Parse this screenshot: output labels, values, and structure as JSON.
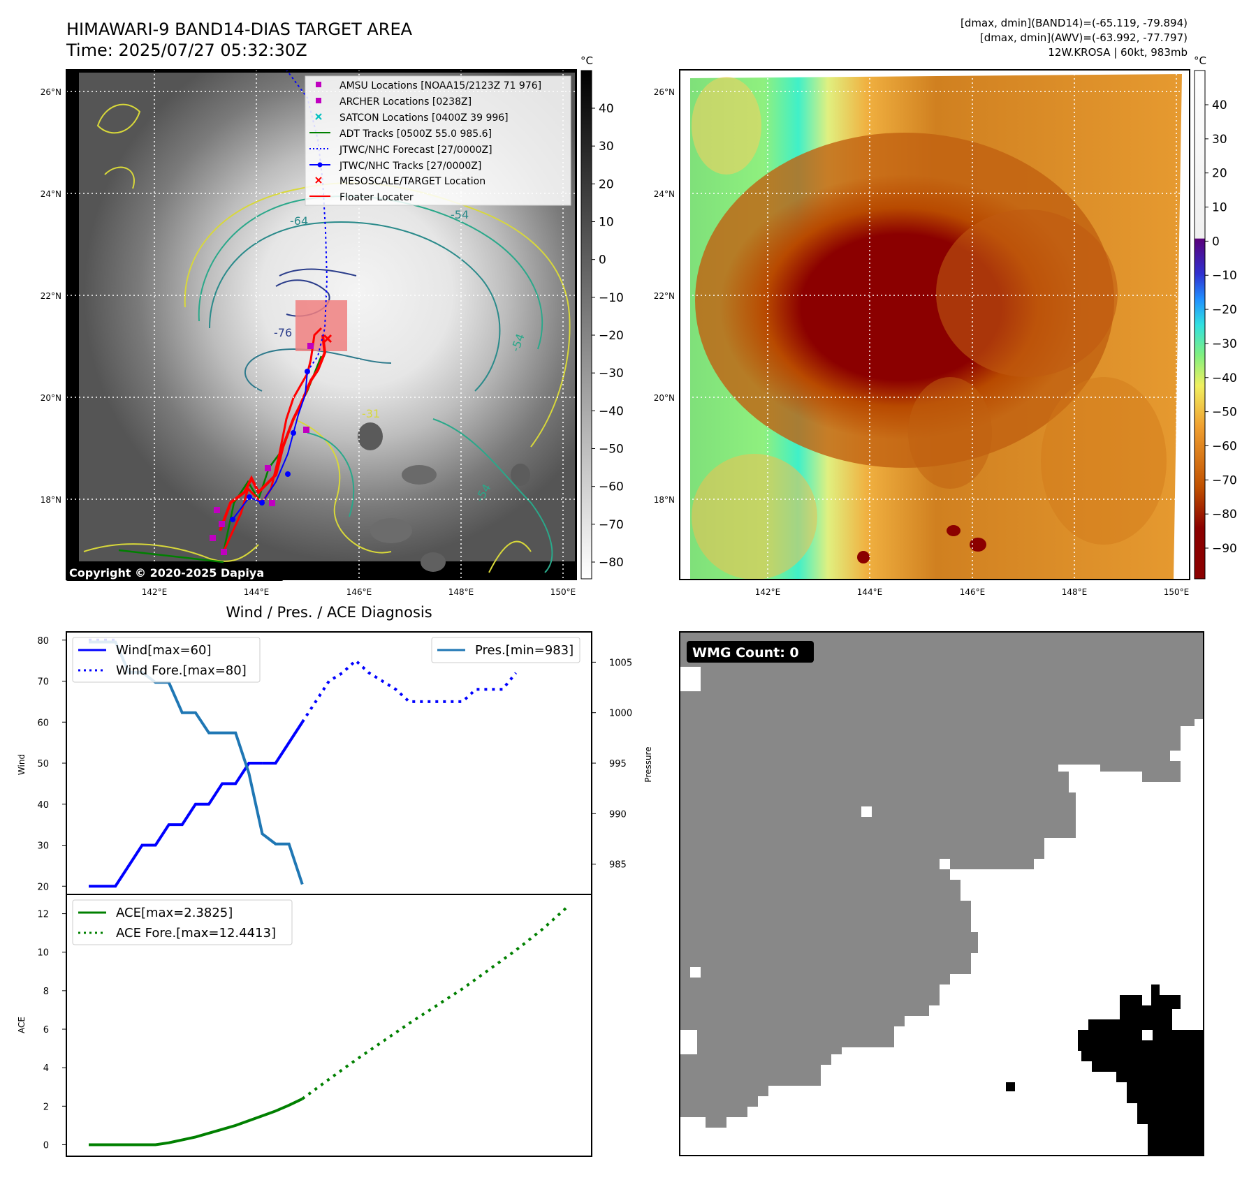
{
  "header": {
    "title_line1": "HIMAWARI-9 BAND14-DIAS TARGET AREA",
    "title_line2": "Time: 2025/07/27 05:32:30Z",
    "info_line1": "[dmax, dmin](BAND14)=(-65.119, -79.894)",
    "info_line2": "[dmax, dmin](AWV)=(-63.992, -77.797)",
    "info_line3": "12W.KROSA | 60kt, 983mb"
  },
  "map_left": {
    "lat_labels": [
      "26°N",
      "24°N",
      "22°N",
      "20°N",
      "18°N"
    ],
    "lon_labels": [
      "142°E",
      "144°E",
      "146°E",
      "148°E",
      "150°E"
    ],
    "colorbar_unit": "°C",
    "colorbar_ticks": [
      "40",
      "30",
      "20",
      "10",
      "0",
      "−10",
      "−20",
      "−30",
      "−40",
      "−50",
      "−60",
      "−70",
      "−80"
    ],
    "copyright": "Copyright © 2020-2025 Dapiya",
    "contour_labels": [
      "-64",
      "-54",
      "-76",
      "-54",
      "-31",
      "-54"
    ],
    "legend": [
      {
        "label": "AMSU Locations [NOAA15/2123Z 71 976]",
        "kind": "square",
        "color": "#c000c0"
      },
      {
        "label": "ARCHER Locations [0238Z]",
        "kind": "square",
        "color": "#c000c0"
      },
      {
        "label": "SATCON Locations [0400Z 39 996]",
        "kind": "x",
        "color": "#00c0c0"
      },
      {
        "label": "ADT Tracks [0500Z 55.0 985.6]",
        "kind": "line",
        "color": "#008000"
      },
      {
        "label": "JTWC/NHC Forecast [27/0000Z]",
        "kind": "dotted",
        "color": "#0000ff"
      },
      {
        "label": "JTWC/NHC Tracks [27/0000Z]",
        "kind": "line-dot",
        "color": "#0000ff"
      },
      {
        "label": "MESOSCALE/TARGET Location",
        "kind": "x",
        "color": "#ff0000"
      },
      {
        "label": "Floater Locater",
        "kind": "line",
        "color": "#ff0000"
      }
    ]
  },
  "map_right": {
    "lat_labels": [
      "26°N",
      "24°N",
      "22°N",
      "20°N",
      "18°N"
    ],
    "lon_labels": [
      "142°E",
      "144°E",
      "146°E",
      "148°E",
      "150°E"
    ],
    "colorbar_unit": "°C",
    "colorbar_ticks": [
      "40",
      "30",
      "20",
      "10",
      "0",
      "−10",
      "−20",
      "−30",
      "−40",
      "−50",
      "−60",
      "−70",
      "−80",
      "−90"
    ]
  },
  "wind_panel": {
    "title": "Wind / Pres. / ACE Diagnosis",
    "ylabel_left": "Wind",
    "ylabel_right": "Pressure",
    "legend_wind": "Wind[max=60]",
    "legend_wind_fore": "Wind Fore.[max=80]",
    "legend_pres": "Pres.[min=983]"
  },
  "ace_panel": {
    "ylabel": "ACE",
    "legend_ace": "ACE[max=2.3825]",
    "legend_ace_fore": "ACE Fore.[max=12.4413]"
  },
  "wmg_panel": {
    "badge": "WMG Count: 0"
  },
  "chart_data": [
    {
      "type": "line",
      "name": "wind",
      "ylim": [
        18,
        82
      ],
      "y_ticks": [
        20,
        30,
        40,
        50,
        60,
        70,
        80
      ],
      "series": [
        {
          "name": "Wind[max=60]",
          "style": "solid",
          "color": "#0000ff",
          "x": [
            0,
            1,
            2,
            3,
            4,
            5,
            6,
            7,
            8,
            9,
            10,
            11,
            12,
            13
          ],
          "values": [
            20,
            20,
            20,
            25,
            30,
            30,
            35,
            35,
            40,
            40,
            45,
            45,
            50,
            50
          ]
        },
        {
          "name": "Wind[max=60] (cont.)",
          "style": "solid",
          "color": "#0000ff",
          "x": [
            13,
            14,
            15,
            16
          ],
          "values": [
            50,
            50,
            55,
            60
          ]
        },
        {
          "name": "Wind Fore.[max=80]",
          "style": "dotted",
          "color": "#0000ff",
          "x": [
            16,
            17,
            18,
            19,
            20,
            21,
            22,
            23,
            24,
            25,
            26,
            27,
            28,
            29,
            30,
            31,
            32
          ],
          "values": [
            60,
            65,
            70,
            72,
            75,
            72,
            70,
            68,
            65,
            65,
            65,
            65,
            65,
            68,
            68,
            68,
            72
          ]
        },
        {
          "name": "Wind Fore.[max=80] (start)",
          "style": "dotted",
          "color": "#0000ff",
          "x": [
            0,
            1,
            2
          ],
          "values": [
            80,
            80,
            80
          ]
        }
      ]
    },
    {
      "type": "line",
      "name": "pressure",
      "ylim": [
        982,
        1008
      ],
      "y_ticks": [
        985,
        990,
        995,
        1000,
        1005
      ],
      "series": [
        {
          "name": "Pres.[min=983]",
          "style": "solid",
          "color": "#1f77b4",
          "x": [
            0,
            1,
            2,
            3,
            4,
            5,
            6,
            7,
            8,
            9,
            10,
            11,
            12,
            13,
            14,
            15,
            16
          ],
          "values": [
            1007,
            1007,
            1007,
            1004,
            1004,
            1003,
            1003,
            1000,
            1000,
            998,
            998,
            998,
            994,
            988,
            987,
            987,
            983
          ]
        }
      ]
    },
    {
      "type": "line",
      "name": "ace",
      "ylim": [
        -0.6,
        13
      ],
      "y_ticks": [
        0,
        2,
        4,
        6,
        8,
        10,
        12
      ],
      "series": [
        {
          "name": "ACE[max=2.3825]",
          "style": "solid",
          "color": "#008000",
          "x": [
            0,
            1,
            2,
            3,
            4,
            5,
            6,
            7,
            8,
            9,
            10,
            11,
            12,
            13,
            14,
            15,
            16
          ],
          "values": [
            0,
            0,
            0,
            0,
            0,
            0,
            0.1,
            0.25,
            0.4,
            0.6,
            0.8,
            1.0,
            1.25,
            1.5,
            1.75,
            2.05,
            2.3825
          ]
        },
        {
          "name": "ACE Fore.[max=12.4413]",
          "style": "dotted",
          "color": "#008000",
          "x": [
            16,
            18,
            20,
            22,
            24,
            26,
            28,
            30,
            32,
            34,
            36
          ],
          "values": [
            2.3825,
            3.4,
            4.4,
            5.35,
            6.3,
            7.2,
            8.1,
            9.1,
            10.1,
            11.2,
            12.4413
          ]
        }
      ]
    }
  ]
}
